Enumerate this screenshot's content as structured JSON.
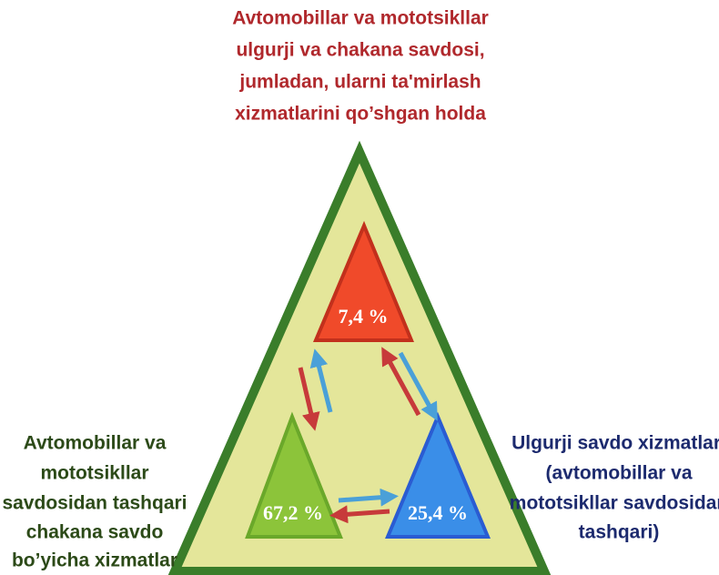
{
  "top_label": [
    "Avtomobillar va mototsikllar",
    "ulgurji va chakana savdosi,",
    "jumladan, ularni  ta'mirlash",
    "xizmatlarini qo’shgan holda"
  ],
  "left_label": [
    "Avtomobillar va",
    "mototsikllar",
    "savdosidan  tashqari",
    "chakana  savdo",
    "bo’yicha xizmatlar"
  ],
  "right_label": [
    "Ulgurji savdo xizmatlari",
    "(avtomobillar va",
    "mototsikllar savdosidan",
    "tashqari)"
  ],
  "triangles": {
    "top": "7,4 %",
    "left": "67,2 %",
    "right": "25,4 %"
  }
}
